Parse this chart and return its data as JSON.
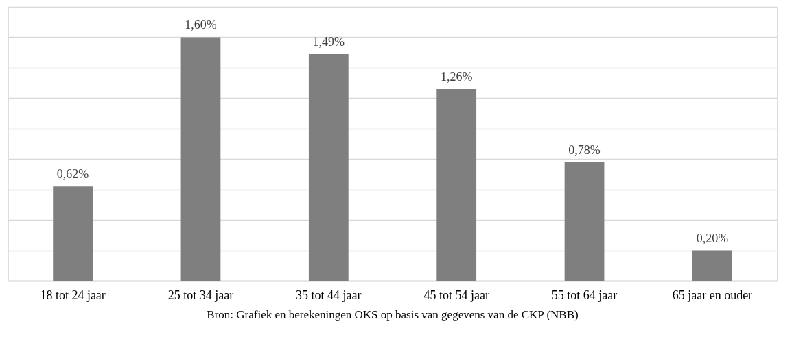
{
  "chart_data": {
    "type": "bar",
    "categories": [
      "18 tot 24 jaar",
      "25 tot 34 jaar",
      "35 tot 44 jaar",
      "45 tot 54 jaar",
      "55 tot 64 jaar",
      "65 jaar en ouder"
    ],
    "values": [
      0.62,
      1.6,
      1.49,
      1.26,
      0.78,
      0.2
    ],
    "value_labels": [
      "0,62%",
      "1,60%",
      "1,49%",
      "1,26%",
      "0,78%",
      "0,20%"
    ],
    "color": "#7f7f7f",
    "ylim": [
      0,
      1.8
    ],
    "yticks": [
      {
        "value": 0,
        "label": null
      },
      {
        "value": 0.2,
        "label": null
      },
      {
        "value": 0.4,
        "label": null
      },
      {
        "value": 0.6,
        "label": null
      },
      {
        "value": 0.8,
        "label": null
      },
      {
        "value": 1.0,
        "label": null
      },
      {
        "value": 1.2,
        "label": null
      },
      {
        "value": 1.4,
        "label": null
      },
      {
        "value": 1.6,
        "label": null
      },
      {
        "value": 1.8,
        "label": null
      }
    ],
    "grid": "y",
    "tick_labels": "x",
    "annotations": [
      "Bron: Grafiek en berekeningen OKS op basis van gegevens van de CKP (NBB)"
    ]
  }
}
